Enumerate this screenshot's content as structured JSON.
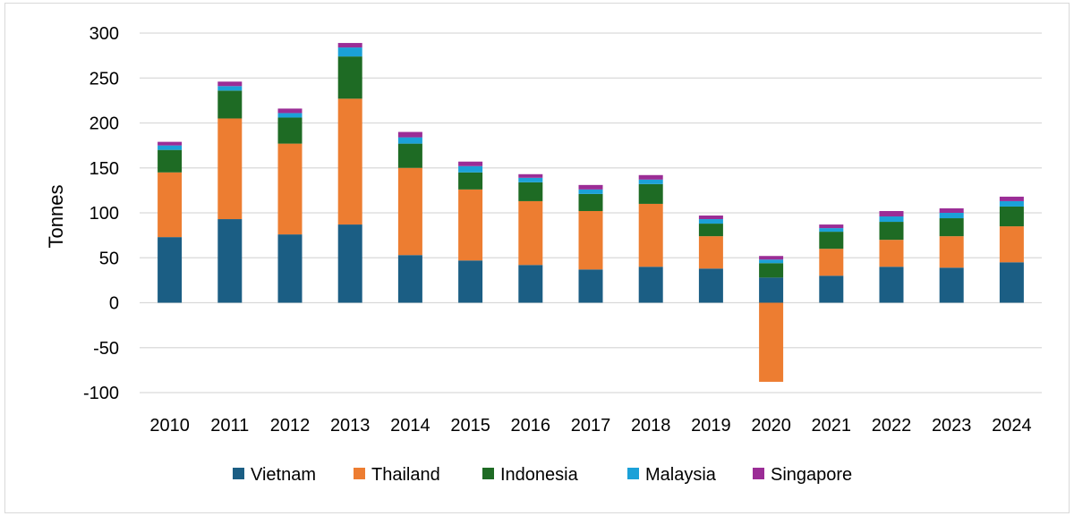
{
  "chart_data": {
    "type": "bar",
    "stacked": true,
    "title": "",
    "xlabel": "",
    "ylabel": "Tonnes",
    "ylim": [
      -100,
      300
    ],
    "yticks": [
      -100,
      -50,
      0,
      50,
      100,
      150,
      200,
      250,
      300
    ],
    "ytick_labels": [
      "-100",
      "-50",
      "0",
      "50",
      "100",
      "150",
      "200",
      "250",
      "300"
    ],
    "grid": true,
    "legend_position": "bottom",
    "categories": [
      "2010",
      "2011",
      "2012",
      "2013",
      "2014",
      "2015",
      "2016",
      "2017",
      "2018",
      "2019",
      "2020",
      "2021",
      "2022",
      "2023",
      "2024"
    ],
    "series": [
      {
        "name": "Vietnam",
        "color": "#1b5e84",
        "values": [
          73,
          93,
          76,
          87,
          53,
          47,
          42,
          37,
          40,
          38,
          28,
          30,
          40,
          39,
          45
        ]
      },
      {
        "name": "Thailand",
        "color": "#ed7d31",
        "values": [
          72,
          112,
          101,
          140,
          97,
          79,
          71,
          65,
          70,
          36,
          -88,
          30,
          30,
          35,
          40
        ]
      },
      {
        "name": "Indonesia",
        "color": "#1e6b24",
        "values": [
          25,
          31,
          29,
          47,
          27,
          19,
          21,
          19,
          22,
          14,
          16,
          19,
          20,
          20,
          22
        ]
      },
      {
        "name": "Malaysia",
        "color": "#1ba1d8",
        "values": [
          5,
          5,
          5,
          10,
          7,
          7,
          5,
          5,
          5,
          5,
          4,
          4,
          6,
          6,
          6
        ]
      },
      {
        "name": "Singapore",
        "color": "#9b2d96",
        "values": [
          4,
          5,
          5,
          5,
          6,
          5,
          4,
          5,
          5,
          4,
          4,
          4,
          6,
          5,
          5
        ]
      }
    ]
  }
}
